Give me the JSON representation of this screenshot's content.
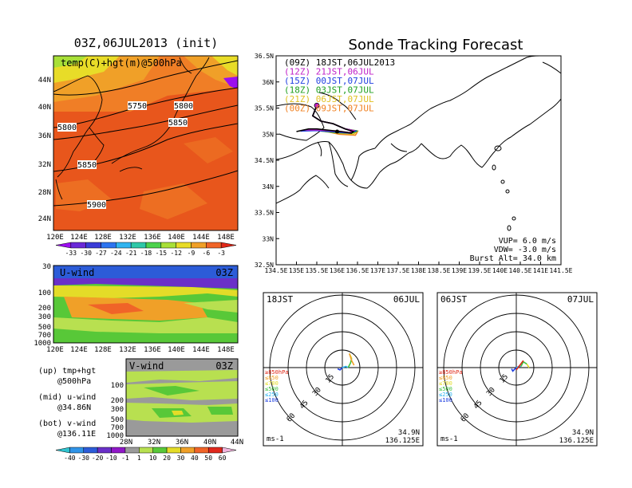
{
  "left_map": {
    "title": "03Z,06JUL2013 (init)",
    "overlay": "temp(C)+hgt(m)@500hPa",
    "lon_ticks": [
      "120E",
      "124E",
      "128E",
      "132E",
      "136E",
      "140E",
      "144E",
      "148E"
    ],
    "lat_ticks": [
      "24N",
      "28N",
      "32N",
      "36N",
      "40N",
      "44N"
    ],
    "contours": [
      "5750",
      "5800",
      "5800",
      "5850",
      "5850",
      "5900"
    ],
    "colorbar_labels": [
      "-33",
      "-30",
      "-27",
      "-24",
      "-21",
      "-18",
      "-15",
      "-12",
      "-9",
      "-6",
      "-3"
    ],
    "colorbar_colors": [
      "#9c0ef0",
      "#6a28d8",
      "#3a3cd8",
      "#2c74f0",
      "#30b4f0",
      "#2ec8a8",
      "#4cd24c",
      "#a8e038",
      "#e8dc28",
      "#f0a028",
      "#f06428",
      "#e02818"
    ]
  },
  "u_panel": {
    "title": "U-wind",
    "time": "03Z",
    "p_ticks": [
      "30",
      "100",
      "200",
      "300",
      "500",
      "700",
      "1000"
    ],
    "lon_ticks": [
      "120E",
      "124E",
      "128E",
      "132E",
      "136E",
      "140E",
      "144E",
      "148E"
    ]
  },
  "v_panel": {
    "title": "V-wind",
    "time": "03Z",
    "p_ticks": [
      "100",
      "200",
      "300",
      "500",
      "700",
      "1000"
    ],
    "lat_ticks": [
      "28N",
      "32N",
      "36N",
      "40N",
      "44N"
    ]
  },
  "legend": {
    "up": "(up) tmp+hgt",
    "up2": "@500hPa",
    "mid": "(mid) u-wind",
    "mid2": "@34.86N",
    "bot": "(bot) v-wind",
    "bot2": "@136.11E"
  },
  "wind_colorbar": {
    "labels": [
      "-40",
      "-30",
      "-20",
      "-10",
      "-1",
      "1",
      "10",
      "20",
      "30",
      "40",
      "50",
      "60"
    ],
    "colors": [
      "#30c4d0",
      "#3094e8",
      "#2c5cd8",
      "#6a30c8",
      "#9018c8",
      "#9a9a9a",
      "#b8e050",
      "#58c838",
      "#e4dc28",
      "#f0a028",
      "#f06428",
      "#e0281c",
      "#f0b4dc"
    ]
  },
  "track_map": {
    "title": "Sonde Tracking Forecast",
    "lat_ticks": [
      "32.5N",
      "33N",
      "33.5N",
      "34N",
      "34.5N",
      "35N",
      "35.5N",
      "36N",
      "36.5N"
    ],
    "lon_ticks": [
      "134.5E",
      "135E",
      "135.5E",
      "136E",
      "136.5E",
      "137E",
      "137.5E",
      "138E",
      "138.5E",
      "139E",
      "139.5E",
      "140E",
      "140.5E",
      "141E",
      "141.5E"
    ],
    "legend": [
      {
        "label": "(09Z)  18JST,06JUL2013",
        "color": "#000000"
      },
      {
        "label": "(12Z)  21JST,06JUL",
        "color": "#c020c8"
      },
      {
        "label": "(15Z)  00JST,07JUL",
        "color": "#2040e0"
      },
      {
        "label": "(18Z)  03JST,07JUL",
        "color": "#20a020"
      },
      {
        "label": "(21Z)  06JST,07JUL",
        "color": "#e0c020"
      },
      {
        "label": "(00Z)  09JST,07JUL",
        "color": "#f08020"
      }
    ],
    "vup": "VUP=  6.0  m/s",
    "vdw": "VDW= -3.0  m/s",
    "burst": "Burst Alt= 34.0  km"
  },
  "hodo_left": {
    "time": "18JST",
    "date": "06JUL",
    "ring_labels": [
      "15",
      "30",
      "45",
      "60"
    ],
    "levels": [
      {
        "label": "≥850hPa",
        "color": "#e02818"
      },
      {
        "label": "≤850",
        "color": "#f0a028"
      },
      {
        "label": "≤700",
        "color": "#e4dc28"
      },
      {
        "label": "≤500",
        "color": "#40c040"
      },
      {
        "label": "≤250",
        "color": "#30b4f0"
      },
      {
        "label": "≤100",
        "color": "#2040e0"
      }
    ],
    "unit": "ms-1",
    "lat": "34.9N",
    "lon": "136.125E"
  },
  "hodo_right": {
    "time": "06JST",
    "date": "07JUL",
    "ring_labels": [
      "15",
      "30",
      "45",
      "60"
    ],
    "levels": [
      {
        "label": "≥850hPa",
        "color": "#e02818"
      },
      {
        "label": "≤850",
        "color": "#f0a028"
      },
      {
        "label": "≤700",
        "color": "#e4dc28"
      },
      {
        "label": "≤500",
        "color": "#40c040"
      },
      {
        "label": "≤250",
        "color": "#30b4f0"
      },
      {
        "label": "≤100",
        "color": "#2040e0"
      }
    ],
    "unit": "ms-1",
    "lat": "34.9N",
    "lon": "136.125E"
  },
  "chart_data": [
    {
      "type": "heatmap",
      "title": "03Z,06JUL2013 (init)",
      "subtitle": "temp(C)+hgt(m)@500hPa",
      "x_range": [
        "120E",
        "150E"
      ],
      "y_range": [
        "22N",
        "47N"
      ],
      "contour_labels": [
        5750,
        5800,
        5850,
        5900
      ]
    },
    {
      "type": "heatmap",
      "title": "U-wind",
      "annotation": "03Z",
      "x_range": [
        "120E",
        "150E"
      ],
      "y_range_hPa": [
        1000,
        30
      ],
      "y_scale": "log"
    },
    {
      "type": "heatmap",
      "title": "V-wind",
      "annotation": "03Z",
      "x_range": [
        "28N",
        "44N"
      ],
      "y_range_hPa": [
        1000,
        100
      ],
      "y_scale": "log"
    },
    {
      "type": "line",
      "title": "Sonde Tracking Forecast",
      "xlim": [
        134.5,
        141.5
      ],
      "ylim": [
        32.5,
        36.5
      ],
      "launch_point": {
        "x": 135.5,
        "y": 35.55
      },
      "series": [
        {
          "name": "(09Z)  18JST,06JUL2013",
          "x": [
            135.5,
            135.4,
            135.6,
            135.9,
            136.2,
            136.4,
            136.35,
            136.1,
            135.5,
            135.3,
            135.0
          ],
          "y": [
            35.55,
            35.35,
            35.25,
            35.2,
            35.1,
            35.05,
            35.02,
            35.05,
            35.1,
            35.1,
            35.05
          ]
        },
        {
          "name": "(12Z)  21JST,06JUL",
          "x": [
            135.5,
            135.4,
            135.6,
            135.9,
            136.2,
            136.4,
            136.3,
            136.0,
            135.5,
            135.2
          ],
          "y": [
            35.55,
            35.35,
            35.25,
            35.2,
            35.1,
            35.07,
            35.03,
            35.06,
            35.08,
            35.08
          ]
        },
        {
          "name": "(15Z)  00JST,07JUL",
          "x": [
            135.5,
            135.4,
            135.6,
            135.9,
            136.2,
            136.45,
            136.3,
            136.0,
            135.5,
            135.1
          ],
          "y": [
            35.55,
            35.35,
            35.25,
            35.2,
            35.1,
            35.06,
            35.02,
            35.04,
            35.07,
            35.06
          ]
        },
        {
          "name": "(18Z)  03JST,07JUL",
          "x": [
            135.5,
            135.4,
            135.6,
            135.9,
            136.2,
            136.5,
            136.35,
            136.0,
            135.6
          ],
          "y": [
            35.55,
            35.35,
            35.25,
            35.2,
            35.1,
            35.06,
            35.02,
            35.03,
            35.06
          ]
        },
        {
          "name": "(21Z)  06JST,07JUL",
          "x": [
            135.5,
            135.4,
            135.6,
            135.9,
            136.2,
            136.5,
            136.4,
            136.0,
            135.7
          ],
          "y": [
            35.55,
            35.35,
            35.25,
            35.2,
            35.1,
            35.06,
            35.0,
            35.02,
            35.05
          ]
        },
        {
          "name": "(00Z)  09JST,07JUL",
          "x": [
            135.5,
            135.4,
            135.6,
            135.9,
            136.2,
            136.5,
            136.45,
            136.05,
            135.8
          ],
          "y": [
            35.55,
            35.35,
            35.25,
            35.2,
            35.1,
            35.05,
            34.98,
            35.0,
            35.04
          ]
        }
      ]
    },
    {
      "type": "line",
      "title": "hodograph 18JST 06JUL",
      "series": [
        {
          "name": "≤100",
          "u": [
            -4,
            -2,
            0
          ],
          "v": [
            -1,
            -2,
            0
          ]
        },
        {
          "name": "≤250",
          "u": [
            0,
            3,
            5
          ],
          "v": [
            0,
            1,
            0
          ]
        },
        {
          "name": "≤500",
          "u": [
            5,
            7,
            8
          ],
          "v": [
            0,
            4,
            8
          ]
        },
        {
          "name": "≤700",
          "u": [
            8,
            6
          ],
          "v": [
            8,
            12
          ]
        },
        {
          "name": "≤850",
          "u": [
            6,
            8,
            10
          ],
          "v": [
            12,
            6,
            2
          ]
        }
      ]
    },
    {
      "type": "line",
      "title": "hodograph 06JST 07JUL",
      "series": [
        {
          "name": "≤100",
          "u": [
            -4,
            -3,
            0
          ],
          "v": [
            -1,
            -3,
            0
          ]
        },
        {
          "name": "≤250",
          "u": [
            0,
            2,
            4
          ],
          "v": [
            0,
            1,
            1
          ]
        },
        {
          "name": "≤500",
          "u": [
            4,
            6,
            9
          ],
          "v": [
            1,
            5,
            3
          ]
        },
        {
          "name": "≤700",
          "u": [
            9,
            11
          ],
          "v": [
            3,
            0
          ]
        },
        {
          "name": "≥850hPa",
          "u": [
            0,
            3,
            6
          ],
          "v": [
            -2,
            2,
            6
          ]
        }
      ]
    }
  ]
}
